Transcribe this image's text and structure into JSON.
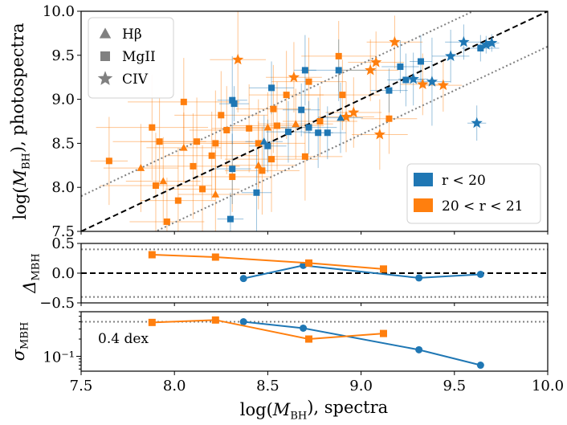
{
  "colors": {
    "blue": "#1f77b4",
    "orange": "#ff7f0e",
    "axis": "#000000",
    "grid_dotted": "#808080"
  },
  "chart_data": [
    {
      "type": "scatter",
      "panel": "main",
      "xlabel": "log(M_BH), spectra",
      "ylabel": "log(M_BH), photospectra",
      "xlim": [
        7.5,
        10.0
      ],
      "ylim": [
        7.5,
        10.0
      ],
      "xticks": [
        "7.5",
        "8.0",
        "8.5",
        "9.0",
        "9.5",
        "10.0"
      ],
      "yticks": [
        "7.5",
        "8.0",
        "8.5",
        "9.0",
        "9.5",
        "10.0"
      ],
      "reference_lines": {
        "one_to_one": "y = x (dashed)",
        "offset_dex": 0.4
      },
      "legend_markers": {
        "title_placement": "top-left",
        "items": [
          "Hβ",
          "MgII",
          "CIV"
        ]
      },
      "legend_colors": {
        "placement": "bottom-right",
        "items": [
          "r < 20",
          "20 < r < 21"
        ]
      },
      "series": [
        {
          "name": "r < 20",
          "color": "blue",
          "points": [
            {
              "x": 8.31,
              "y": 8.99,
              "m": "s",
              "xe": 0.08,
              "ye": 0.5
            },
            {
              "x": 8.31,
              "y": 8.21,
              "m": "s",
              "xe": 0.1,
              "ye": 0.4
            },
            {
              "x": 8.3,
              "y": 7.64,
              "m": "s",
              "xe": 0.07,
              "ye": 0.3
            },
            {
              "x": 8.44,
              "y": 7.94,
              "m": "s",
              "xe": 0.08,
              "ye": 0.5
            },
            {
              "x": 8.48,
              "y": 8.52,
              "m": "^",
              "xe": 0.1,
              "ye": 0.3
            },
            {
              "x": 8.52,
              "y": 9.13,
              "m": "s",
              "xe": 0.12,
              "ye": 0.3
            },
            {
              "x": 8.5,
              "y": 8.47,
              "m": "s",
              "xe": 0.1,
              "ye": 0.3
            },
            {
              "x": 8.61,
              "y": 8.63,
              "m": "s",
              "xe": 0.12,
              "ye": 0.35
            },
            {
              "x": 8.68,
              "y": 8.88,
              "m": "s",
              "xe": 0.1,
              "ye": 0.3
            },
            {
              "x": 8.7,
              "y": 9.33,
              "m": "s",
              "xe": 0.06,
              "ye": 0.4
            },
            {
              "x": 8.72,
              "y": 8.68,
              "m": "s",
              "xe": 0.15,
              "ye": 0.3
            },
            {
              "x": 8.77,
              "y": 8.62,
              "m": "s",
              "xe": 0.08,
              "ye": 0.4
            },
            {
              "x": 8.82,
              "y": 8.62,
              "m": "s",
              "xe": 0.1,
              "ye": 0.3
            },
            {
              "x": 8.88,
              "y": 9.33,
              "m": "s",
              "xe": 0.2,
              "ye": 0.35
            },
            {
              "x": 8.89,
              "y": 8.79,
              "m": "^",
              "xe": 0.12,
              "ye": 0.4
            },
            {
              "x": 9.21,
              "y": 9.37,
              "m": "s",
              "xe": 0.1,
              "ye": 0.3
            },
            {
              "x": 9.24,
              "y": 9.22,
              "m": "s",
              "xe": 0.1,
              "ye": 0.3
            },
            {
              "x": 9.32,
              "y": 9.43,
              "m": "s",
              "xe": 0.06,
              "ye": 0.3
            },
            {
              "x": 9.38,
              "y": 9.2,
              "m": "*",
              "xe": 0.1,
              "ye": 0.5
            },
            {
              "x": 9.48,
              "y": 9.49,
              "m": "*",
              "xe": 0.1,
              "ye": 0.3
            },
            {
              "x": 9.55,
              "y": 9.65,
              "m": "*",
              "xe": 0.1,
              "ye": 0.2
            },
            {
              "x": 9.62,
              "y": 8.73,
              "m": "*",
              "xe": 0.05,
              "ye": 0.2
            },
            {
              "x": 9.64,
              "y": 9.58,
              "m": "s",
              "xe": 0.1,
              "ye": 0.15
            },
            {
              "x": 9.67,
              "y": 9.62,
              "m": "*",
              "xe": 0.05,
              "ye": 0.1
            },
            {
              "x": 9.7,
              "y": 9.64,
              "m": "*",
              "xe": 0.04,
              "ye": 0.1
            },
            {
              "x": 8.32,
              "y": 8.95,
              "m": "s",
              "xe": 0.08,
              "ye": 0.2
            },
            {
              "x": 9.28,
              "y": 9.23,
              "m": "*",
              "xe": 0.08,
              "ye": 0.3
            },
            {
              "x": 9.15,
              "y": 9.1,
              "m": "s",
              "xe": 0.1,
              "ye": 0.25
            }
          ]
        },
        {
          "name": "20 < r < 21",
          "color": "orange",
          "points": [
            {
              "x": 7.65,
              "y": 8.3,
              "m": "s",
              "xe": 0.1,
              "ye": 0.5
            },
            {
              "x": 7.88,
              "y": 8.68,
              "m": "s",
              "xe": 0.3,
              "ye": 0.6
            },
            {
              "x": 7.9,
              "y": 8.02,
              "m": "s",
              "xe": 0.3,
              "ye": 0.6
            },
            {
              "x": 7.92,
              "y": 8.52,
              "m": "s",
              "xe": 0.25,
              "ye": 0.5
            },
            {
              "x": 7.96,
              "y": 7.61,
              "m": "s",
              "xe": 0.2,
              "ye": 0.5
            },
            {
              "x": 8.02,
              "y": 7.85,
              "m": "s",
              "xe": 0.2,
              "ye": 0.6
            },
            {
              "x": 8.05,
              "y": 8.97,
              "m": "s",
              "xe": 0.3,
              "ye": 0.5
            },
            {
              "x": 8.1,
              "y": 8.24,
              "m": "s",
              "xe": 0.25,
              "ye": 0.6
            },
            {
              "x": 8.12,
              "y": 8.52,
              "m": "s",
              "xe": 0.3,
              "ye": 0.5
            },
            {
              "x": 8.15,
              "y": 7.98,
              "m": "s",
              "xe": 0.2,
              "ye": 0.5
            },
            {
              "x": 8.2,
              "y": 8.36,
              "m": "s",
              "xe": 0.25,
              "ye": 0.5
            },
            {
              "x": 8.22,
              "y": 8.5,
              "m": "s",
              "xe": 0.3,
              "ye": 0.6
            },
            {
              "x": 8.25,
              "y": 8.82,
              "m": "s",
              "xe": 0.25,
              "ye": 0.5
            },
            {
              "x": 8.28,
              "y": 8.65,
              "m": "s",
              "xe": 0.2,
              "ye": 0.5
            },
            {
              "x": 8.31,
              "y": 8.12,
              "m": "s",
              "xe": 0.2,
              "ye": 0.4
            },
            {
              "x": 8.34,
              "y": 9.45,
              "m": "*",
              "xe": 0.15,
              "ye": 0.6
            },
            {
              "x": 8.4,
              "y": 8.67,
              "m": "s",
              "xe": 0.2,
              "ye": 0.5
            },
            {
              "x": 8.45,
              "y": 8.5,
              "m": "s",
              "xe": 0.25,
              "ye": 0.5
            },
            {
              "x": 8.47,
              "y": 8.19,
              "m": "s",
              "xe": 0.2,
              "ye": 0.5
            },
            {
              "x": 8.52,
              "y": 8.32,
              "m": "s",
              "xe": 0.25,
              "ye": 0.6
            },
            {
              "x": 8.53,
              "y": 8.89,
              "m": "s",
              "xe": 0.2,
              "ye": 0.5
            },
            {
              "x": 8.55,
              "y": 8.7,
              "m": "s",
              "xe": 0.25,
              "ye": 0.5
            },
            {
              "x": 8.6,
              "y": 9.05,
              "m": "s",
              "xe": 0.2,
              "ye": 0.5
            },
            {
              "x": 8.64,
              "y": 9.25,
              "m": "*",
              "xe": 0.15,
              "ye": 0.4
            },
            {
              "x": 8.7,
              "y": 8.35,
              "m": "s",
              "xe": 0.2,
              "ye": 0.5
            },
            {
              "x": 8.72,
              "y": 9.2,
              "m": "s",
              "xe": 0.2,
              "ye": 0.5
            },
            {
              "x": 8.78,
              "y": 8.75,
              "m": "s",
              "xe": 0.2,
              "ye": 0.4
            },
            {
              "x": 8.88,
              "y": 9.49,
              "m": "s",
              "xe": 0.2,
              "ye": 0.4
            },
            {
              "x": 8.9,
              "y": 9.05,
              "m": "s",
              "xe": 0.2,
              "ye": 0.4
            },
            {
              "x": 8.92,
              "y": 8.8,
              "m": "*",
              "xe": 0.15,
              "ye": 0.4
            },
            {
              "x": 8.96,
              "y": 8.85,
              "m": "*",
              "xe": 0.15,
              "ye": 0.4
            },
            {
              "x": 9.05,
              "y": 9.33,
              "m": "*",
              "xe": 0.15,
              "ye": 0.35
            },
            {
              "x": 9.08,
              "y": 9.42,
              "m": "*",
              "xe": 0.15,
              "ye": 0.35
            },
            {
              "x": 9.1,
              "y": 8.6,
              "m": "*",
              "xe": 0.15,
              "ye": 0.4
            },
            {
              "x": 9.15,
              "y": 8.78,
              "m": "s",
              "xe": 0.15,
              "ye": 0.4
            },
            {
              "x": 9.18,
              "y": 9.65,
              "m": "*",
              "xe": 0.15,
              "ye": 0.3
            },
            {
              "x": 9.33,
              "y": 9.17,
              "m": "*",
              "xe": 0.12,
              "ye": 0.35
            },
            {
              "x": 9.44,
              "y": 9.16,
              "m": "*",
              "xe": 0.1,
              "ye": 0.3
            },
            {
              "x": 7.94,
              "y": 8.07,
              "m": "^",
              "xe": 0.2,
              "ye": 0.5
            },
            {
              "x": 8.22,
              "y": 7.92,
              "m": "^",
              "xe": 0.2,
              "ye": 0.5
            },
            {
              "x": 8.45,
              "y": 8.25,
              "m": "^",
              "xe": 0.2,
              "ye": 0.5
            },
            {
              "x": 7.82,
              "y": 8.22,
              "m": "^",
              "xe": 0.2,
              "ye": 0.5
            },
            {
              "x": 8.5,
              "y": 8.68,
              "m": "^",
              "xe": 0.2,
              "ye": 0.4
            },
            {
              "x": 8.05,
              "y": 8.45,
              "m": "^",
              "xe": 0.2,
              "ye": 0.4
            },
            {
              "x": 8.65,
              "y": 8.72,
              "m": "^",
              "xe": 0.2,
              "ye": 0.4
            }
          ]
        }
      ]
    },
    {
      "type": "line",
      "panel": "delta",
      "ylabel": "Δ_MBH",
      "xlim": [
        7.5,
        10.0
      ],
      "ylim": [
        -0.5,
        0.5
      ],
      "yticks": [
        "0.5",
        "0.0",
        "−0.5"
      ],
      "reference_lines": {
        "zero": 0.0,
        "dotted": [
          0.4,
          -0.4
        ]
      },
      "series": [
        {
          "name": "r < 20",
          "color": "blue",
          "marker": "o",
          "x": [
            8.37,
            8.69,
            9.31,
            9.64
          ],
          "y": [
            -0.09,
            0.13,
            -0.08,
            -0.02
          ]
        },
        {
          "name": "20 < r < 21",
          "color": "orange",
          "marker": "s",
          "x": [
            7.88,
            8.22,
            8.72,
            9.12
          ],
          "y": [
            0.31,
            0.27,
            0.17,
            0.07
          ]
        }
      ]
    },
    {
      "type": "line",
      "panel": "sigma",
      "ylabel": "σ_MBH",
      "yscale": "log",
      "xlim": [
        7.5,
        10.0
      ],
      "ylim": [
        0.055,
        0.6
      ],
      "yticks": [
        "10⁻¹"
      ],
      "reference_lines": {
        "dotted": [
          0.4
        ]
      },
      "annotation": "0.4 dex",
      "series": [
        {
          "name": "r < 20",
          "color": "blue",
          "marker": "o",
          "x": [
            8.37,
            8.69,
            9.31,
            9.64
          ],
          "y": [
            0.4,
            0.31,
            0.13,
            0.07
          ]
        },
        {
          "name": "20 < r < 21",
          "color": "orange",
          "marker": "s",
          "x": [
            7.88,
            8.22,
            8.72,
            9.12
          ],
          "y": [
            0.39,
            0.43,
            0.2,
            0.25
          ]
        }
      ]
    }
  ]
}
